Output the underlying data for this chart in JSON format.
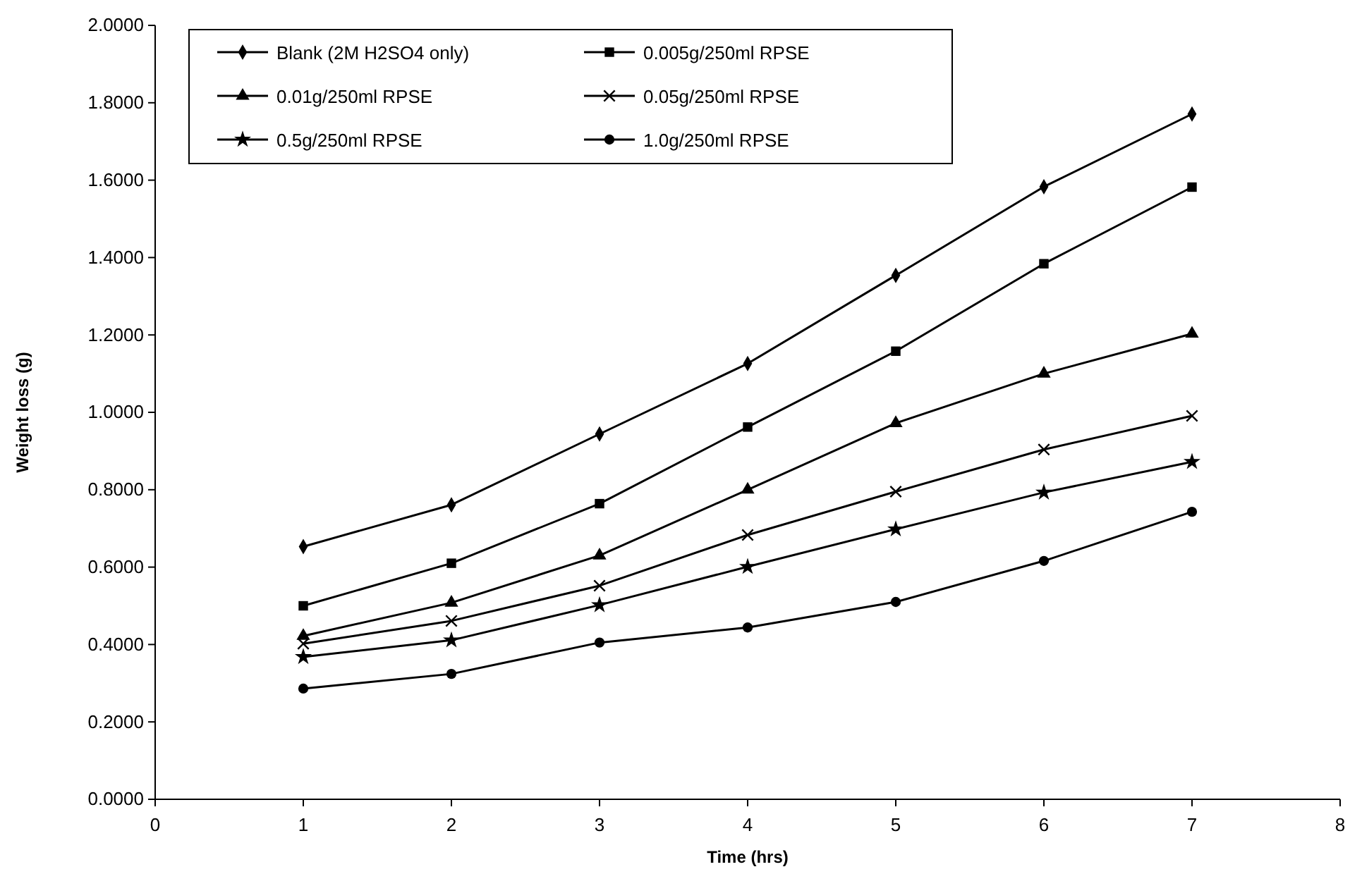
{
  "chart_data": {
    "type": "line",
    "xlabel": "Time (hrs)",
    "ylabel": "Weight loss (g)",
    "x": [
      1,
      2,
      3,
      4,
      5,
      6,
      7
    ],
    "xlim": [
      0,
      8
    ],
    "xticks": [
      0,
      1,
      2,
      3,
      4,
      5,
      6,
      7,
      8
    ],
    "ylim": [
      0,
      2
    ],
    "yticks": [
      {
        "value": 0,
        "label": "0.0000"
      },
      {
        "value": 0.2,
        "label": "0.2000"
      },
      {
        "value": 0.4,
        "label": "0.4000"
      },
      {
        "value": 0.6,
        "label": "0.6000"
      },
      {
        "value": 0.8,
        "label": "0.8000"
      },
      {
        "value": 1,
        "label": "1.0000"
      },
      {
        "value": 1.2,
        "label": "1.2000"
      },
      {
        "value": 1.4,
        "label": "1.4000"
      },
      {
        "value": 1.6,
        "label": "1.6000"
      },
      {
        "value": 1.8,
        "label": "1.8000"
      },
      {
        "value": 2,
        "label": "2.0000"
      }
    ],
    "legend": "top left",
    "line_style": "solid",
    "series": [
      {
        "name": "Blank (2M H2SO4 only)",
        "color": "#000000",
        "marker": "diamond",
        "values": [
          0.653,
          0.761,
          0.944,
          1.126,
          1.354,
          1.583,
          1.771
        ]
      },
      {
        "name": "0.005g/250ml RPSE",
        "color": "#000000",
        "marker": "square",
        "values": [
          0.5,
          0.61,
          0.764,
          0.962,
          1.158,
          1.384,
          1.582
        ]
      },
      {
        "name": "0.01g/250ml RPSE",
        "color": "#000000",
        "marker": "triangle",
        "values": [
          0.422,
          0.508,
          0.63,
          0.8,
          0.972,
          1.1,
          1.203
        ]
      },
      {
        "name": "0.05g/250ml RPSE",
        "color": "#000000",
        "marker": "cross",
        "values": [
          0.402,
          0.461,
          0.552,
          0.683,
          0.795,
          0.904,
          0.991
        ]
      },
      {
        "name": "0.5g/250ml RPSE",
        "color": "#000000",
        "marker": "star",
        "values": [
          0.368,
          0.411,
          0.502,
          0.601,
          0.698,
          0.793,
          0.872
        ]
      },
      {
        "name": "1.0g/250ml RPSE",
        "color": "#000000",
        "marker": "circle",
        "values": [
          0.286,
          0.324,
          0.405,
          0.444,
          0.51,
          0.616,
          0.743
        ]
      }
    ]
  }
}
